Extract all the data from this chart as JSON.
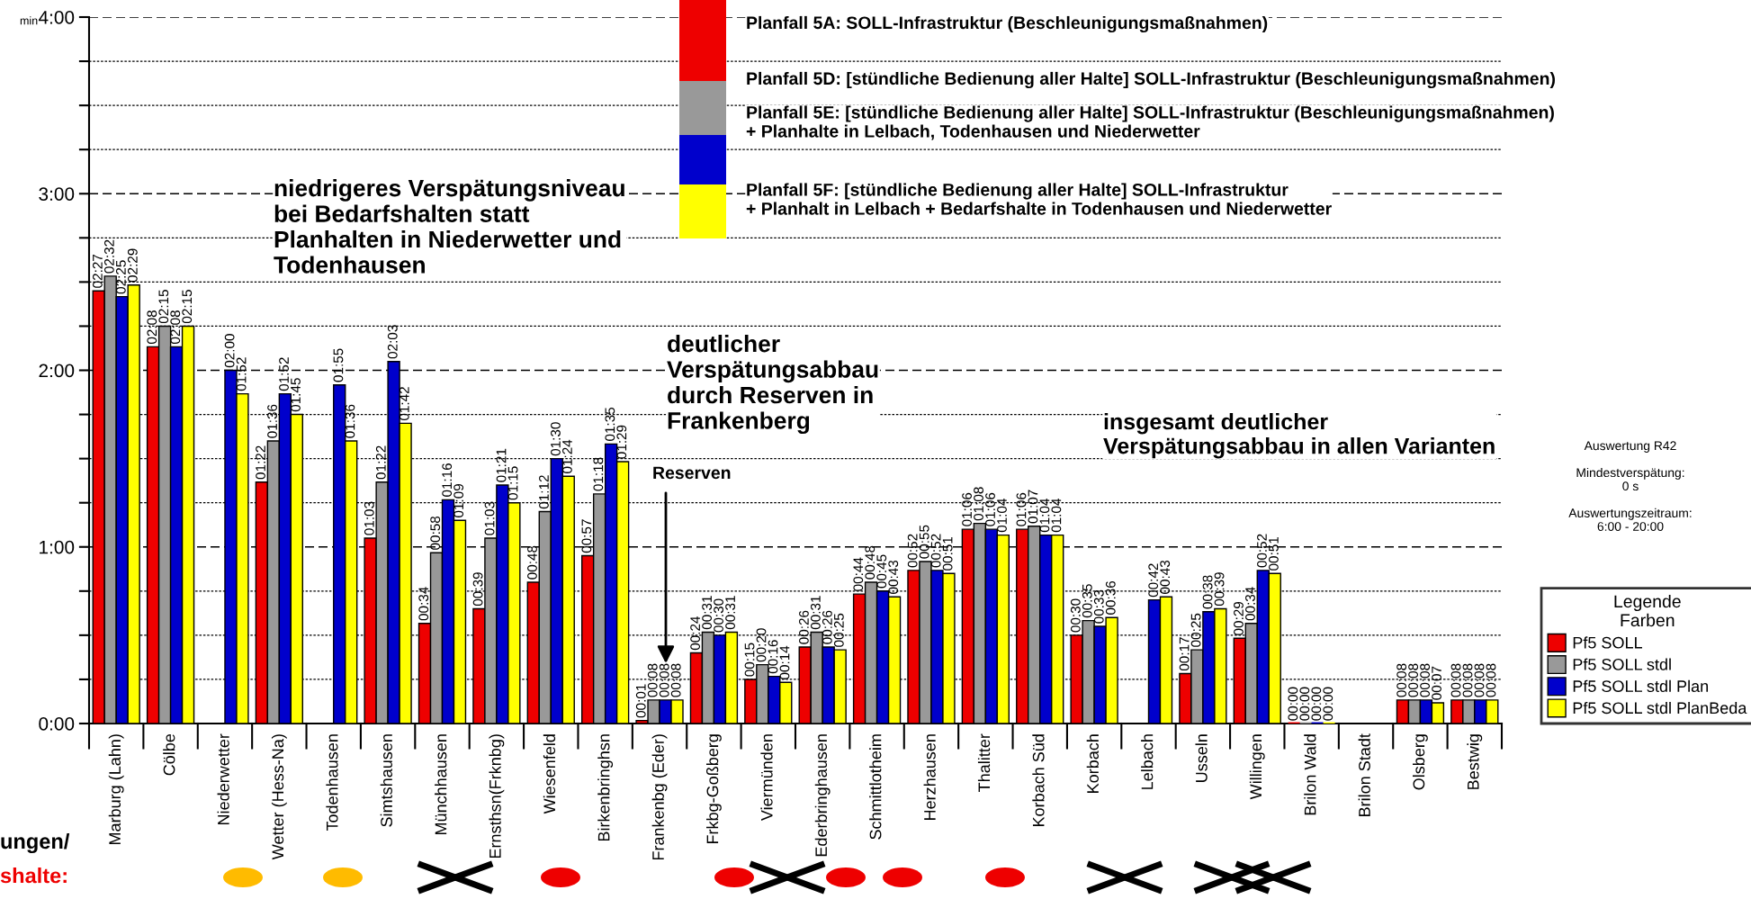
{
  "chart_data": {
    "type": "bar",
    "ylabel": "min",
    "categories": [
      "Marburg (Lahn)",
      "Cölbe",
      "Niederwetter",
      "Wetter (Hess-Na)",
      "Todenhausen",
      "Simtshausen",
      "Münchhausen",
      "Ernsthsn(Frknbg)",
      "Wiesenfeld",
      "Birkenbringhsn",
      "Frankenbg (Eder)",
      "Frkbg-Goßberg",
      "Viermünden",
      "Ederbringhausen",
      "Schmittlotheim",
      "Herzhausen",
      "Thalitter",
      "Korbach Süd",
      "Korbach",
      "Lelbach",
      "Usseln",
      "Willingen",
      "Brilon Wald",
      "Brilon Stadt",
      "Olsberg",
      "Bestwig"
    ],
    "series": [
      {
        "name": "Pf5 SOLL",
        "color": "#ee0000",
        "values": [
          2.45,
          2.133,
          null,
          1.367,
          null,
          1.05,
          0.567,
          0.65,
          0.8,
          0.95,
          0.017,
          0.4,
          0.25,
          0.433,
          0.733,
          0.867,
          1.1,
          1.1,
          0.5,
          null,
          0.283,
          0.483,
          0,
          null,
          0.133,
          0.133
        ],
        "value_labels": [
          "02:27",
          "02:08",
          null,
          "01:22",
          null,
          "01:03",
          "00:34",
          "00:39",
          "00:48",
          "00:57",
          "00:01",
          "00:24",
          "00:15",
          "00:26",
          "00:44",
          "00:52",
          "01:06",
          "01:06",
          "00:30",
          null,
          "00:17",
          "00:29",
          "00:00",
          null,
          "00:08",
          "00:08"
        ]
      },
      {
        "name": "Pf5 SOLL stdl",
        "color": "#999999",
        "values": [
          2.533,
          2.25,
          null,
          1.6,
          null,
          1.367,
          0.967,
          1.05,
          1.2,
          1.3,
          0.133,
          0.517,
          0.333,
          0.517,
          0.8,
          0.917,
          1.133,
          1.117,
          0.583,
          null,
          0.417,
          0.567,
          0,
          null,
          0.133,
          0.133
        ],
        "value_labels": [
          "02:32",
          "02:15",
          null,
          "01:36",
          null,
          "01:22",
          "00:58",
          "01:03",
          "01:12",
          "01:18",
          "00:08",
          "00:31",
          "00:20",
          "00:31",
          "00:48",
          "00:55",
          "01:08",
          "01:07",
          "00:35",
          null,
          "00:25",
          "00:34",
          "00:00",
          null,
          "00:08",
          "00:08"
        ]
      },
      {
        "name": "Pf5 SOLL stdl Plan",
        "color": "#0000cc",
        "values": [
          2.417,
          2.133,
          2.0,
          1.867,
          1.917,
          2.05,
          1.267,
          1.35,
          1.5,
          1.583,
          0.133,
          0.5,
          0.267,
          0.433,
          0.75,
          0.867,
          1.1,
          1.067,
          0.55,
          0.7,
          0.633,
          0.867,
          0,
          null,
          0.133,
          0.133
        ],
        "value_labels": [
          "02:25",
          "02:08",
          "02:00",
          "01:52",
          "01:55",
          "02:03",
          "01:16",
          "01:21",
          "01:30",
          "01:35",
          "00:08",
          "00:30",
          "00:16",
          "00:26",
          "00:45",
          "00:52",
          "01:06",
          "01:04",
          "00:33",
          "00:42",
          "00:38",
          "00:52",
          "00:00",
          null,
          "00:08",
          "00:08"
        ]
      },
      {
        "name": "Pf5 SOLL stdl PlanBeda",
        "color": "#ffff00",
        "values": [
          2.483,
          2.25,
          1.867,
          1.75,
          1.6,
          1.7,
          1.15,
          1.25,
          1.4,
          1.483,
          0.133,
          0.517,
          0.233,
          0.417,
          0.717,
          0.85,
          1.067,
          1.067,
          0.6,
          0.717,
          0.65,
          0.85,
          0,
          null,
          0.117,
          0.133
        ],
        "value_labels": [
          "02:29",
          "02:15",
          "01:52",
          "01:45",
          "01:36",
          "01:42",
          "01:09",
          "01:15",
          "01:24",
          "01:29",
          "00:08",
          "00:31",
          "00:14",
          "00:25",
          "00:43",
          "00:51",
          "01:04",
          "01:04",
          "00:36",
          "00:43",
          "00:39",
          "00:51",
          "00:00",
          null,
          "00:07",
          "00:08"
        ]
      }
    ],
    "ylim": [
      0,
      4
    ],
    "yticks": [
      {
        "value": 0,
        "label": "0:00"
      },
      {
        "value": 0.25,
        "label": null
      },
      {
        "value": 0.5,
        "label": null
      },
      {
        "value": 0.75,
        "label": null
      },
      {
        "value": 1,
        "label": "1:00"
      },
      {
        "value": 1.25,
        "label": null
      },
      {
        "value": 1.5,
        "label": null
      },
      {
        "value": 1.75,
        "label": null
      },
      {
        "value": 2,
        "label": "2:00"
      },
      {
        "value": 2.25,
        "label": null
      },
      {
        "value": 2.5,
        "label": null
      },
      {
        "value": 2.75,
        "label": null
      },
      {
        "value": 3,
        "label": "3:00"
      },
      {
        "value": 3.25,
        "label": null
      },
      {
        "value": 3.5,
        "label": null
      },
      {
        "value": 3.75,
        "label": null
      },
      {
        "value": 4,
        "label": "4:00"
      }
    ],
    "grid": "y",
    "legend": "right",
    "legend_title": "Legende\nFarben",
    "annotations": [
      "Planfall 5A: SOLL-Infrastruktur (Beschleunigungsmaßnahmen)",
      "Planfall 5D: [stündliche Bedienung aller Halte] SOLL-Infrastruktur (Beschleunigungsmaßnahmen)",
      "Planfall 5E: [stündliche Bedienung aller Halte] SOLL-Infrastruktur (Beschleunigungsmaßnahmen)\n+ Planhalte in Lelbach, Todenhausen und Niederwetter",
      "Planfall 5F: [stündliche Bedienung aller Halte] SOLL-Infrastruktur\n+ Planhalt in Lelbach + Bedarfshalte in Todenhausen und Niederwetter",
      "niedrigeres Verspätungsniveau\nbei Bedarfshalten statt\nPlanhalten in Niederwetter und\nTodenhausen",
      "deutlicher\nVerspätungsabbau\ndurch Reserven in\nFrankenberg",
      "insgesamt deutlicher\nVerspätungsabbau in allen Varianten",
      "Auswertung R42\n\nMindestverspätung:\n0 s\n\nAuswertungszeitraum:\n6:00 - 20:00",
      "ungen/",
      "shalte:",
      "Reserven"
    ]
  }
}
